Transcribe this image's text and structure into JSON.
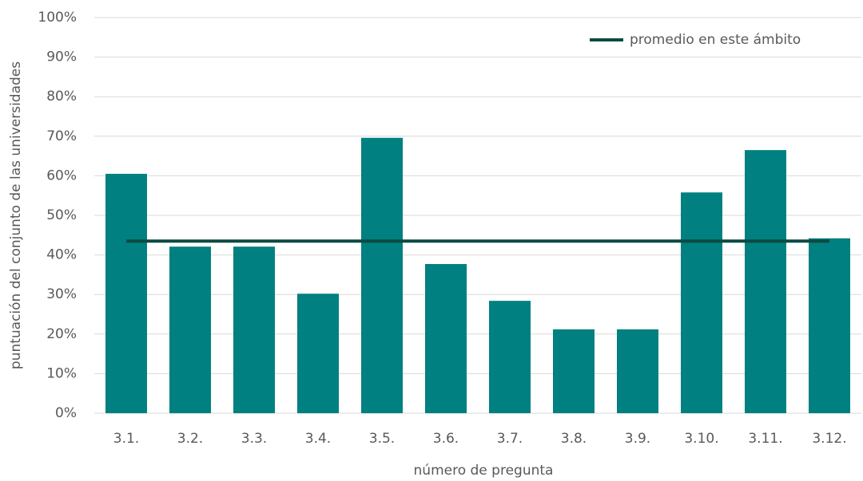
{
  "chart_data": {
    "type": "bar",
    "x_label": "número de pregunta",
    "y_label": "puntuación del conjunto de las universidades",
    "categories": [
      "3.1.",
      "3.2.",
      "3.3.",
      "3.4.",
      "3.5.",
      "3.6.",
      "3.7.",
      "3.8.",
      "3.9.",
      "3.10.",
      "3.11.",
      "3.12."
    ],
    "values": [
      60.5,
      42.1,
      42.1,
      30.2,
      69.6,
      37.7,
      28.4,
      21.2,
      21.2,
      55.8,
      66.5,
      44.2
    ],
    "color": "#008080",
    "average": {
      "name": "promedio en este ámbito",
      "value": 43.5,
      "color": "#0b4a43"
    },
    "legend": "top-right",
    "ylim": [
      0,
      100
    ],
    "yticks": [
      {
        "value": 0,
        "label": "0%"
      },
      {
        "value": 10,
        "label": "10%"
      },
      {
        "value": 20,
        "label": "20%"
      },
      {
        "value": 30,
        "label": "30%"
      },
      {
        "value": 40,
        "label": "40%"
      },
      {
        "value": 50,
        "label": "50%"
      },
      {
        "value": 60,
        "label": "60%"
      },
      {
        "value": 70,
        "label": "70%"
      },
      {
        "value": 80,
        "label": "80%"
      },
      {
        "value": 90,
        "label": "90%"
      },
      {
        "value": 100,
        "label": "100%"
      }
    ],
    "grid": true
  }
}
